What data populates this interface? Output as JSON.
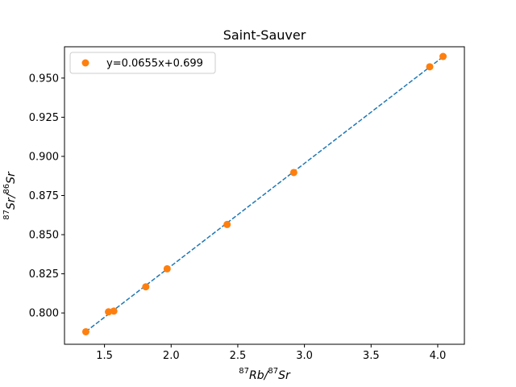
{
  "chart_data": {
    "type": "scatter",
    "title": "Saint-Sauver",
    "xlabel": {
      "pre": "87",
      "base": "Rb/",
      "mid": "87",
      "tail": "Sr"
    },
    "ylabel": {
      "pre": "87",
      "base": "Sr/",
      "mid": "86",
      "tail": "Sr"
    },
    "xlim": [
      1.2,
      4.2
    ],
    "ylim": [
      0.78,
      0.97
    ],
    "xticks": [
      1.5,
      2.0,
      2.5,
      3.0,
      3.5,
      4.0
    ],
    "xtick_labels": [
      "1.5",
      "2.0",
      "2.5",
      "3.0",
      "3.5",
      "4.0"
    ],
    "yticks": [
      0.8,
      0.825,
      0.85,
      0.875,
      0.9,
      0.925,
      0.95
    ],
    "ytick_labels": [
      "0.800",
      "0.825",
      "0.850",
      "0.875",
      "0.900",
      "0.925",
      "0.950"
    ],
    "grid": false,
    "legend_position": "top-left",
    "series": [
      {
        "name": "y=0.0655x+0.699",
        "kind": "points",
        "color": "#ff7f0e",
        "x": [
          1.36,
          1.53,
          1.57,
          1.81,
          1.97,
          2.42,
          2.92,
          3.94,
          4.04
        ],
        "y": [
          0.788,
          0.8007,
          0.8012,
          0.8167,
          0.8282,
          0.8565,
          0.8897,
          0.9572,
          0.9638
        ]
      },
      {
        "kind": "fit-line",
        "color": "#1f77b4",
        "slope": 0.0655,
        "intercept": 0.699,
        "x_range": [
          1.36,
          4.04
        ]
      }
    ]
  }
}
